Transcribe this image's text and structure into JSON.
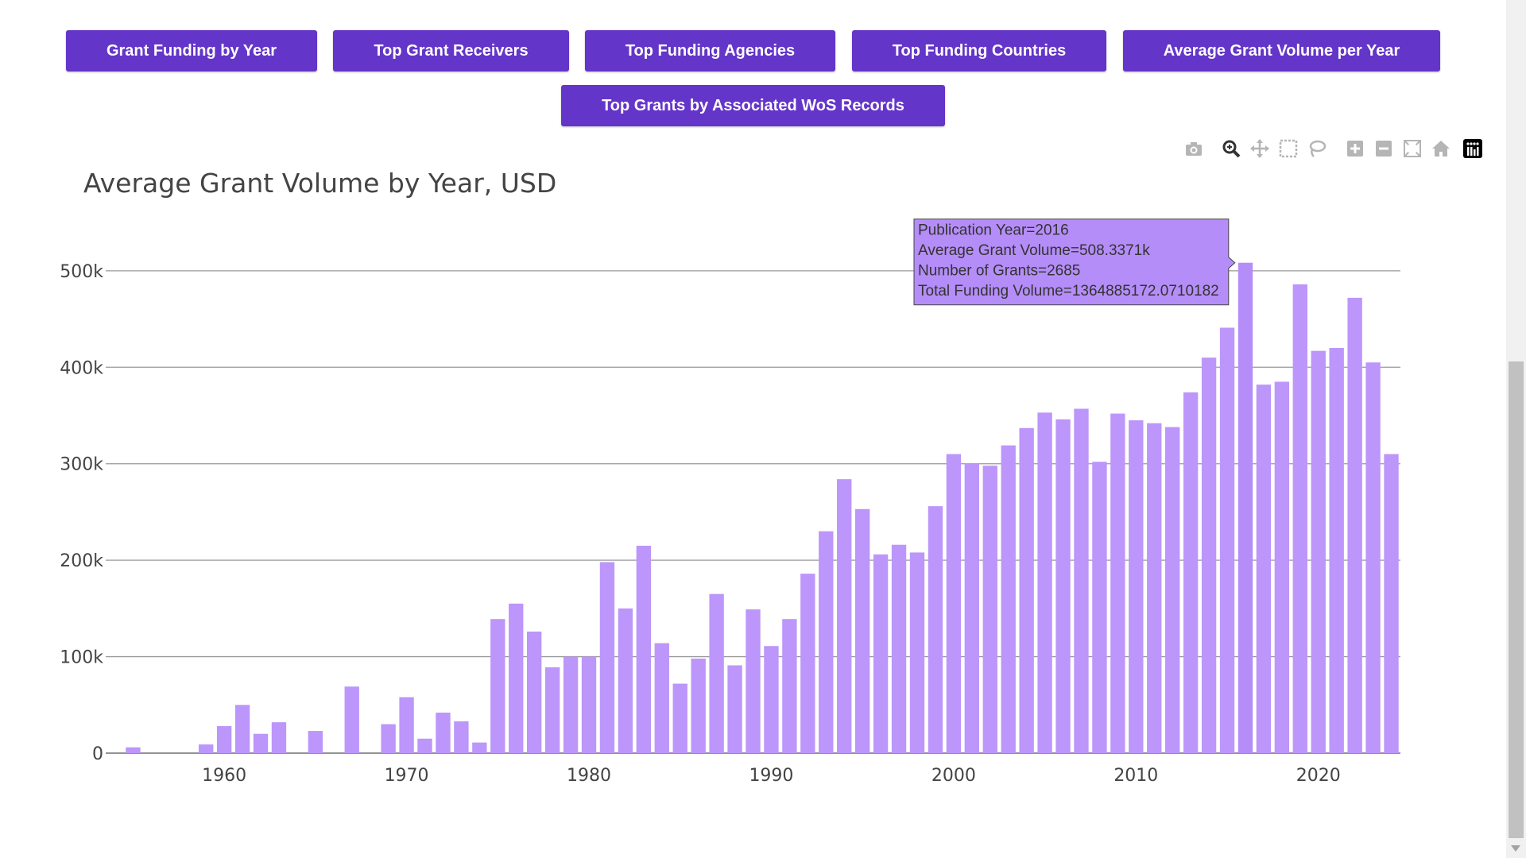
{
  "nav": {
    "buttons": [
      "Grant Funding by Year",
      "Top Grant Receivers",
      "Top Funding Agencies",
      "Top Funding Countries",
      "Average Grant Volume per Year",
      "Top Grants by Associated WoS Records"
    ]
  },
  "modebar": {
    "icons": [
      "camera-icon",
      "zoom-icon",
      "pan-icon",
      "box-select-icon",
      "lasso-select-icon",
      "zoom-in-icon",
      "zoom-out-icon",
      "autoscale-icon",
      "reset-axes-icon",
      "plotly-logo-icon"
    ]
  },
  "chart_data": {
    "type": "bar",
    "title": "Average Grant Volume by Year, USD",
    "xlabel": "",
    "ylabel": "",
    "bar_color": "#bc96fa",
    "hover_color": "#b58df8",
    "x_ticks": [
      "1960",
      "1970",
      "1980",
      "1990",
      "2000",
      "2010",
      "2020"
    ],
    "y_ticks": [
      "0",
      "100k",
      "200k",
      "300k",
      "400k",
      "500k"
    ],
    "ylim": [
      0,
      560000
    ],
    "xlim": [
      1953.5,
      2024.5
    ],
    "grid": true,
    "x": [
      1955,
      1959,
      1960,
      1961,
      1962,
      1963,
      1965,
      1967,
      1969,
      1970,
      1971,
      1972,
      1973,
      1974,
      1975,
      1976,
      1977,
      1978,
      1979,
      1980,
      1981,
      1982,
      1983,
      1984,
      1985,
      1986,
      1987,
      1988,
      1989,
      1990,
      1991,
      1992,
      1993,
      1994,
      1995,
      1996,
      1997,
      1998,
      1999,
      2000,
      2001,
      2002,
      2003,
      2004,
      2005,
      2006,
      2007,
      2008,
      2009,
      2010,
      2011,
      2012,
      2013,
      2014,
      2015,
      2016,
      2017,
      2018,
      2019,
      2020,
      2021,
      2022,
      2023,
      2024
    ],
    "values": [
      6000,
      9000,
      28000,
      50000,
      20000,
      32000,
      23000,
      69000,
      30000,
      58000,
      15000,
      42000,
      33000,
      11000,
      139000,
      155000,
      126000,
      89000,
      100000,
      100000,
      198000,
      150000,
      215000,
      114000,
      72000,
      98000,
      165000,
      91000,
      149000,
      111000,
      139000,
      186000,
      230000,
      284000,
      253000,
      206000,
      216000,
      208000,
      256000,
      310000,
      300000,
      298000,
      319000,
      337000,
      353000,
      346000,
      357000,
      302000,
      352000,
      345000,
      342000,
      338000,
      374000,
      410000,
      441000,
      508337,
      382000,
      385000,
      486000,
      417000,
      420000,
      472000,
      405000,
      310000
    ],
    "hover": {
      "lines": [
        "Publication Year=2016",
        "Average Grant Volume=508.3371k",
        "Number of Grants=2685",
        "Total Funding Volume=1364885172.0710182"
      ],
      "x": 2016
    }
  }
}
